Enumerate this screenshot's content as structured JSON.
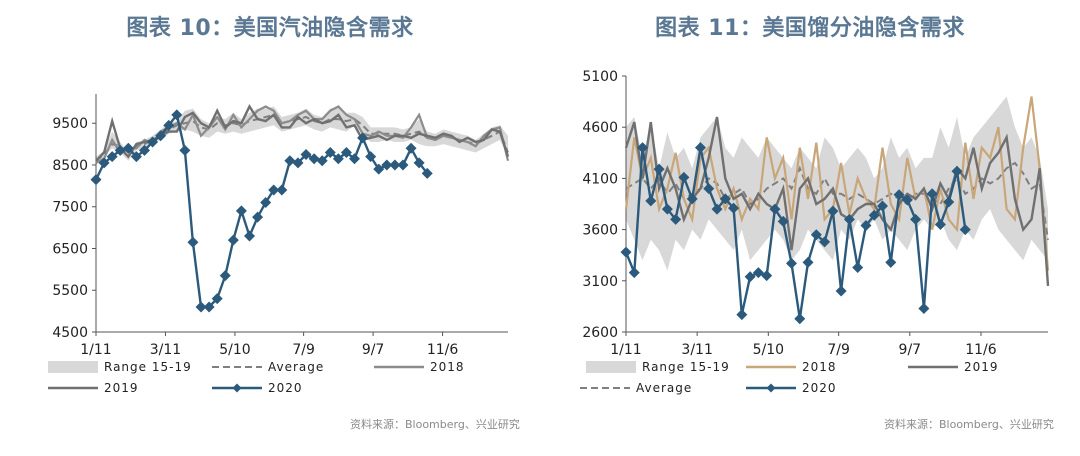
{
  "chart_data": [
    {
      "type": "line",
      "title": "图表 10：美国汽油隐含需求",
      "source": "资料来源：Bloomberg、兴业研究",
      "x_ticks": [
        "1/11",
        "3/11",
        "5/10",
        "7/9",
        "9/7",
        "11/6"
      ],
      "y_ticks": [
        "4500",
        "5500",
        "6500",
        "7500",
        "8500",
        "9500"
      ],
      "ylim": [
        4500,
        10200
      ],
      "weeks": 52,
      "legend": [
        {
          "key": "range",
          "label": "Range 15-19"
        },
        {
          "key": "average",
          "label": "Average"
        },
        {
          "key": "s2018",
          "label": "2018"
        },
        {
          "key": "s2019",
          "label": "2019"
        },
        {
          "key": "s2020",
          "label": "2020"
        }
      ],
      "range_low": [
        8500,
        8700,
        8900,
        8800,
        8600,
        8850,
        8900,
        9000,
        9100,
        9250,
        9300,
        9350,
        9300,
        9200,
        9150,
        9300,
        9250,
        9300,
        9250,
        9300,
        9350,
        9400,
        9450,
        9300,
        9350,
        9400,
        9450,
        9350,
        9300,
        9400,
        9350,
        9300,
        9450,
        9250,
        9050,
        9050,
        9100,
        9050,
        9050,
        9100,
        9000,
        8950,
        8950,
        9000,
        8950,
        8900,
        8850,
        8800,
        8900,
        9000,
        9100,
        8700
      ],
      "range_high": [
        8700,
        8850,
        9300,
        9050,
        8800,
        9050,
        9100,
        9200,
        9350,
        9500,
        9550,
        9800,
        9850,
        9600,
        9500,
        9650,
        9600,
        9750,
        9600,
        9750,
        9850,
        9850,
        9900,
        9650,
        9700,
        9750,
        9850,
        9700,
        9650,
        9850,
        9900,
        9750,
        9750,
        9650,
        9400,
        9400,
        9400,
        9400,
        9350,
        9400,
        9600,
        9300,
        9250,
        9350,
        9300,
        9250,
        9200,
        9100,
        9250,
        9400,
        9450,
        9200
      ],
      "average": [
        8600,
        8750,
        9000,
        8950,
        8700,
        8950,
        9000,
        9100,
        9200,
        9350,
        9450,
        9500,
        9550,
        9400,
        9350,
        9500,
        9450,
        9500,
        9450,
        9550,
        9600,
        9650,
        9700,
        9500,
        9550,
        9600,
        9650,
        9550,
        9500,
        9600,
        9600,
        9550,
        9600,
        9450,
        9250,
        9250,
        9250,
        9250,
        9200,
        9250,
        9300,
        9150,
        9100,
        9200,
        9150,
        9100,
        9050,
        9000,
        9100,
        9200,
        9300,
        8800
      ],
      "s2018": [
        8550,
        8650,
        9100,
        8800,
        8900,
        8900,
        9100,
        9000,
        9300,
        9400,
        9500,
        9350,
        9700,
        9200,
        9400,
        9650,
        9350,
        9700,
        9400,
        9600,
        9800,
        9900,
        9800,
        9500,
        9550,
        9700,
        9800,
        9600,
        9600,
        9800,
        9900,
        9700,
        9600,
        9250,
        9200,
        9300,
        9200,
        9200,
        9150,
        9400,
        9700,
        9150,
        9100,
        9200,
        9150,
        9100,
        9050,
        8950,
        9200,
        9350,
        9400,
        8600
      ],
      "s2019": [
        8600,
        8800,
        9550,
        8900,
        8700,
        9000,
        9050,
        9100,
        9200,
        9300,
        9300,
        9650,
        9750,
        9500,
        9400,
        9800,
        9400,
        9550,
        9500,
        9900,
        9600,
        9550,
        9700,
        9400,
        9400,
        9650,
        9500,
        9600,
        9500,
        9550,
        9700,
        9400,
        9450,
        9100,
        9150,
        9200,
        9100,
        9200,
        9200,
        9150,
        9250,
        9200,
        9150,
        9250,
        9200,
        9050,
        9150,
        9050,
        9100,
        9350,
        9300,
        8700
      ],
      "s2020": [
        8150,
        8550,
        8700,
        8850,
        8900,
        8700,
        8850,
        9050,
        9200,
        9450,
        9700,
        8850,
        6650,
        5100,
        5100,
        5300,
        5850,
        6700,
        7400,
        6800,
        7250,
        7600,
        7900,
        7900,
        8600,
        8550,
        8750,
        8650,
        8600,
        8800,
        8650,
        8800,
        8650,
        9150,
        8700,
        8400,
        8500,
        8500,
        8500,
        8900,
        8550,
        8300
      ]
    },
    {
      "type": "line",
      "title": "图表 11：美国馏分油隐含需求",
      "source": "资料来源：Bloomberg、兴业研究",
      "x_ticks": [
        "1/11",
        "3/11",
        "5/10",
        "7/9",
        "9/7",
        "11/6"
      ],
      "y_ticks": [
        "2600",
        "3100",
        "3600",
        "4100",
        "4600",
        "5100"
      ],
      "ylim": [
        2600,
        5100
      ],
      "weeks": 52,
      "legend": [
        {
          "key": "range",
          "label": "Range 15-19"
        },
        {
          "key": "s2018",
          "label": "2018"
        },
        {
          "key": "s2019",
          "label": "2019"
        },
        {
          "key": "average",
          "label": "Average"
        },
        {
          "key": "s2020",
          "label": "2020"
        }
      ],
      "range_low": [
        3700,
        3500,
        3300,
        3500,
        3400,
        3200,
        3500,
        3400,
        3600,
        3500,
        3700,
        3600,
        3500,
        3400,
        3600,
        3300,
        3400,
        3500,
        3600,
        3500,
        3300,
        3400,
        3600,
        3500,
        3400,
        3300,
        3600,
        3500,
        3700,
        3600,
        3700,
        3500,
        3600,
        3500,
        3400,
        3600,
        3700,
        3600,
        3700,
        3500,
        3400,
        3600,
        3500,
        3700,
        3800,
        3600,
        3500,
        3400,
        3300,
        3500,
        3400,
        3300
      ],
      "range_high": [
        4600,
        4700,
        4300,
        4650,
        4200,
        4550,
        4300,
        4400,
        4200,
        4500,
        4600,
        4700,
        4400,
        4300,
        4500,
        4400,
        4300,
        4500,
        4400,
        4300,
        4200,
        4400,
        4300,
        4200,
        4500,
        4400,
        4200,
        4300,
        4400,
        4300,
        4100,
        4200,
        4500,
        4300,
        4400,
        4200,
        4300,
        4300,
        4600,
        4400,
        4700,
        4300,
        4500,
        4600,
        4700,
        4800,
        4900,
        4600,
        4400,
        4500,
        4300,
        3800
      ],
      "average": [
        4000,
        4050,
        4100,
        4000,
        4100,
        3950,
        4050,
        3900,
        3950,
        4000,
        4100,
        4050,
        3900,
        3950,
        4000,
        3850,
        3900,
        4000,
        4050,
        4100,
        4000,
        4200,
        4000,
        3950,
        4100,
        3950,
        3950,
        3900,
        3950,
        3900,
        3850,
        3900,
        3950,
        3900,
        3850,
        3950,
        3950,
        3900,
        3850,
        4000,
        4100,
        3950,
        4000,
        4100,
        4050,
        4100,
        4200,
        4250,
        4150,
        4000,
        4050,
        3500
      ],
      "s2018": [
        3800,
        4500,
        4100,
        4300,
        3800,
        4000,
        4350,
        3900,
        3700,
        4300,
        4400,
        4000,
        3800,
        4000,
        3700,
        3900,
        3800,
        4500,
        4100,
        4300,
        3700,
        4400,
        3900,
        4450,
        3700,
        3800,
        4250,
        3750,
        4100,
        3900,
        3800,
        4400,
        3850,
        3700,
        4300,
        3900,
        4000,
        3600,
        4000,
        3700,
        3600,
        4450,
        3900,
        4400,
        4300,
        4600,
        3800,
        3700,
        4400,
        4900,
        4200,
        3200
      ],
      "s2019": [
        4400,
        4650,
        4100,
        4650,
        4000,
        4200,
        4000,
        3700,
        3900,
        4000,
        4300,
        4700,
        4100,
        3900,
        3950,
        3800,
        3950,
        3850,
        3800,
        4000,
        3400,
        4000,
        4100,
        3850,
        3900,
        4000,
        3750,
        3700,
        3800,
        3850,
        3850,
        3700,
        3600,
        3850,
        3950,
        3900,
        4000,
        3800,
        4050,
        3900,
        4200,
        4100,
        4400,
        4000,
        4250,
        4350,
        4500,
        3900,
        3600,
        3700,
        4200,
        3050
      ],
      "s2020": [
        3380,
        3180,
        4400,
        3880,
        4190,
        3800,
        3700,
        4110,
        3900,
        4400,
        4000,
        3800,
        3900,
        3810,
        2770,
        3140,
        3180,
        3150,
        3800,
        3680,
        3270,
        2730,
        3280,
        3550,
        3480,
        3780,
        3000,
        3700,
        3230,
        3640,
        3740,
        3830,
        3280,
        3940,
        3890,
        3700,
        2830,
        3950,
        3650,
        3870,
        4170,
        3600
      ]
    }
  ],
  "colors": {
    "title": "#5a7893",
    "range": "#d8d8d8",
    "average": "#7f7f7f",
    "s2018_left": "#8c8c8c",
    "s2018_right": "#c8a679",
    "s2019": "#707070",
    "s2020": "#2c5a7c",
    "axis": "#555555"
  }
}
